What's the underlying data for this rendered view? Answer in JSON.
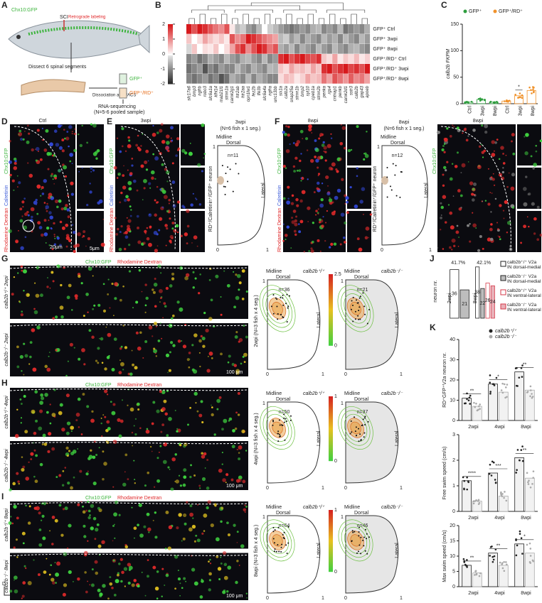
{
  "panels": {
    "a": "A",
    "b": "B",
    "c": "C",
    "d": "D",
    "e": "E",
    "f": "F",
    "g": "G",
    "h": "H",
    "i": "I",
    "j": "J",
    "k": "K"
  },
  "a": {
    "line": "Chx10:GFP",
    "sci": "SCI",
    "label": "Retrograde labeling",
    "dissect": "Dissect 6 spinal segments",
    "facs": "Dissociation and FACS",
    "gfp": "GFP⁺",
    "gfprd": "GFP⁺/RD⁺",
    "seq": "RNA-sequencing",
    "seq2": "(N=5-6 pooled sample)"
  },
  "b": {
    "genes": [
      "slc17a6",
      "bmp3",
      "ngfrb",
      "robo3",
      "slc6a1a",
      "klhl14",
      "mab21l1",
      "stmn1a",
      "camk2g1",
      "htr2ab",
      "htr2aa",
      "opn1lw1",
      "fez2b",
      "tfe3b",
      "slc6a4a",
      "ngfra",
      "unc13bb",
      "six1a",
      "calb2a",
      "snap25a",
      "stmn1b",
      "bmp2",
      "syt10",
      "cpeb1a",
      "stmn2b",
      "penka",
      "rgs4",
      "cntnap1",
      "penkb",
      "camk2d1",
      "sstr3",
      "calb2b",
      "gap43",
      "apoeb"
    ],
    "rows": [
      {
        "name": "GFP⁺ Ctrl",
        "color": "#2e9e3e",
        "values": [
          2,
          1.5,
          2,
          1.8,
          1.5,
          1.2,
          1,
          1.5,
          0.2,
          -0.5,
          -0.3,
          -0.8,
          -1,
          -0.5,
          0,
          -0.3,
          -0.5,
          -0.8,
          -1,
          -1.2,
          -1,
          -0.8,
          -1,
          -0.6,
          -0.5,
          -1,
          -0.8,
          -1,
          -0.5,
          -1.2,
          -1,
          -0.8,
          -1,
          -0.6
        ]
      },
      {
        "name": "GFP⁺ 3wpi",
        "color": "#2e9e3e",
        "values": [
          0.5,
          0,
          0.3,
          0.8,
          0.5,
          0.3,
          0.5,
          0.2,
          1.5,
          1,
          1.2,
          2,
          1.8,
          1.5,
          1.2,
          1,
          0.8,
          -0.5,
          -0.3,
          -0.8,
          -0.5,
          -1,
          -0.6,
          -0.8,
          -1,
          -0.5,
          -0.8,
          -0.6,
          -1,
          -0.5,
          -0.8,
          -1,
          -0.5,
          -0.8
        ]
      },
      {
        "name": "GFP⁺ 8wpi",
        "color": "#2e9e3e",
        "values": [
          -0.2,
          0.5,
          0,
          0.3,
          0.2,
          0.5,
          0,
          0.3,
          0.8,
          1.5,
          1.8,
          1,
          1.5,
          2,
          1.8,
          1.2,
          1.5,
          -0.6,
          -0.8,
          -0.5,
          -1,
          -0.6,
          -0.8,
          -1,
          -0.5,
          -0.8,
          -1,
          -0.5,
          -0.8,
          -1,
          -0.6,
          -0.5,
          -0.8,
          -1
        ]
      },
      {
        "name": "GFP⁺/RD⁺ Ctrl",
        "color": "#e8701e",
        "values": [
          -1,
          -0.8,
          -1.2,
          -1,
          -0.6,
          -0.8,
          -1,
          -0.5,
          -0.8,
          -1,
          -0.6,
          -0.5,
          -0.8,
          -1,
          -0.5,
          -1,
          -0.8,
          1.8,
          2,
          1.5,
          1.8,
          2,
          1.6,
          1.5,
          1.8,
          0.5,
          0.3,
          0.8,
          0.2,
          0.5,
          0.3,
          0.6,
          0.2,
          0.4
        ]
      },
      {
        "name": "GFP⁺/RD⁺ 3wpi",
        "color": "#e8701e",
        "values": [
          -1.2,
          -1,
          -0.8,
          -1.5,
          -1,
          -1.2,
          -0.8,
          -1,
          -1,
          -0.5,
          -0.8,
          -1,
          -0.6,
          -0.8,
          -1,
          -0.5,
          -0.6,
          0.5,
          0.3,
          0.8,
          0.5,
          0.6,
          0.4,
          0.8,
          0.5,
          1.8,
          2,
          1.5,
          1.8,
          2,
          1.6,
          1.8,
          1.5,
          2
        ]
      },
      {
        "name": "GFP⁺/RD⁺ 8wpi",
        "color": "#e8701e",
        "values": [
          -1,
          -1.2,
          -1,
          -0.8,
          -1.2,
          -1,
          -1.5,
          -1.2,
          -0.6,
          -0.8,
          -1,
          -0.5,
          -1,
          -0.6,
          -0.8,
          -1,
          -1,
          0.3,
          0.6,
          0.5,
          0.2,
          0.4,
          0.8,
          0.5,
          0.6,
          1.2,
          0.8,
          1.5,
          1.2,
          0.9,
          1.4,
          1,
          1.2,
          0.8
        ]
      }
    ],
    "lim": [
      -2,
      2
    ],
    "ticks": [
      2,
      1,
      0,
      -1,
      -2
    ],
    "high": "#d7191c",
    "low": "#222222"
  },
  "d": {
    "title": "Ctrl",
    "ch1": "Chx10:GFP",
    "ch2": "Calretinin",
    "ch3": "Rhodamine Dextran",
    "scale1": "20μm",
    "scale2": "5μm"
  },
  "e": {
    "title": "3wpi",
    "ch1": "Chx10:GFP",
    "ch2": "Calretinin",
    "ch3": "Rhodamine Dextran",
    "plot": {
      "title": "3wpi",
      "sub": "(N=6 fish x 1 seg.)",
      "midline": "Midline",
      "dorsal": "Dorsal",
      "lateral": "Lateral",
      "n": "n=11",
      "ylabel": "RD⁺/Calretinin⁺/GFP⁺ neuron",
      "ticks": [
        "0",
        "1",
        "1"
      ]
    }
  },
  "f": {
    "title": "8wpi",
    "title2": "8wpi",
    "ch1": "Chx10:GFP",
    "ch2": "Calretinin",
    "ch3": "Rhodamine Dextran",
    "ch4": "Chx10:GFP",
    "plot": {
      "title": "8wpi",
      "sub": "(N=6 fish x 1 seg.)",
      "midline": "Midline",
      "dorsal": "Dorsal",
      "lateral": "Lateral",
      "n": "n=12",
      "ylabel": "RD⁺/Calretinin⁺/GFP⁺ neuron",
      "ticks": [
        "0",
        "1",
        "1"
      ]
    }
  },
  "g": {
    "ch1": "Chx10:GFP",
    "ch2": "Rhodamine Dextran",
    "img1": "calb2b⁺/⁺ 2wpi",
    "img2": "calb2b⁻/⁻ 2wpi",
    "scale": "100 μm",
    "ylabel": "2wpi (N=3 fish x 4 seg.)",
    "colorbar": [
      "2.5",
      "0"
    ],
    "plots": [
      {
        "genotype": "calb2b⁺/⁺",
        "n": "n=36",
        "midline": "Midline",
        "dorsal": "Dorsal",
        "lateral": "Lateral",
        "ticks": [
          "0",
          "1",
          "1"
        ]
      },
      {
        "genotype": "calb2b⁻/⁻",
        "n": "n=21",
        "midline": "Midline",
        "dorsal": "Dorsal",
        "lateral": "Lateral",
        "ticks": [
          "0",
          "1",
          "1"
        ]
      }
    ]
  },
  "h": {
    "ch1": "Chx10:GFP",
    "ch2": "Rhodamine Dextran",
    "img1": "calb2b⁺/⁺ 4wpi",
    "img2": "calb2b⁻/⁻ 4wpi",
    "scale": "100 μm",
    "ylabel": "4wpi (N=3 fish x 4 seg.)",
    "colorbar": [
      "1",
      "0"
    ],
    "plots": [
      {
        "genotype": "calb2b⁺/⁺",
        "n": "n=50",
        "midline": "Midline",
        "dorsal": "Dorsal",
        "lateral": "Lateral",
        "ticks": [
          "0",
          "1",
          "1"
        ]
      },
      {
        "genotype": "calb2b⁻/⁻",
        "n": "n=37",
        "midline": "Midline",
        "dorsal": "Dorsal",
        "lateral": "Lateral",
        "ticks": [
          "0",
          "1",
          "1"
        ]
      }
    ]
  },
  "i": {
    "ch1": "Chx10:GFP",
    "ch2": "Rhodamine Dextran",
    "img1": "calb2b⁺/⁺ 8wpi",
    "img2": "calb2b⁻/⁻ 8wpi",
    "scale": "100 μm",
    "ylabel": "8wpi (N=3 fish x 4 seg.)",
    "colorbar": [
      "1",
      "0"
    ],
    "axis": [
      "D",
      "C"
    ],
    "plots": [
      {
        "genotype": "calb2b⁺/⁺",
        "n": "n=64",
        "midline": "Midline",
        "dorsal": "Dorsal",
        "lateral": "Lateral",
        "ticks": [
          "0",
          "1",
          "1"
        ]
      },
      {
        "genotype": "calb2b⁻/⁻",
        "n": "n=46",
        "midline": "Midline",
        "dorsal": "Dorsal",
        "lateral": "Lateral",
        "ticks": [
          "0",
          "1",
          "1"
        ]
      }
    ]
  },
  "chart_data": [
    {
      "type": "bar",
      "ylabel": "calb2b FKPM",
      "categories": [
        "Ctrl",
        "3wpi",
        "8wpi",
        "Ctrl",
        "3wpi",
        "8wpi"
      ],
      "ylim": [
        0,
        150
      ],
      "yticks": [
        0,
        50,
        100,
        150
      ],
      "significance": [
        null,
        null,
        null,
        null,
        "*",
        null
      ],
      "fill": "none",
      "series": [
        {
          "name": "GFP⁺",
          "color": "#2e9e3e",
          "values": [
            3,
            8,
            3,
            null,
            null,
            null
          ]
        },
        {
          "name": "GFP⁺/RD⁺",
          "color": "#f0922b",
          "values": [
            null,
            null,
            null,
            5,
            15,
            25
          ]
        }
      ]
    },
    {
      "type": "bar",
      "ylabel": "neuron nr.",
      "categories": [
        "2wpi",
        "8wpi"
      ],
      "ylim": [
        0,
        40
      ],
      "percent_labels": [
        "41.7%",
        "42.1%"
      ],
      "value_text": true,
      "series": [
        {
          "name": "calb2b⁺/⁺ V2a IN dorsal-medial",
          "color": "#ffffff",
          "stroke": "#222222",
          "values": [
            36,
            38
          ]
        },
        {
          "name": "calb2b⁻/⁻ V2a IN dorsal-medial",
          "color": "#bdbdbd",
          "stroke": "#222222",
          "values": [
            21,
            22
          ]
        },
        {
          "name": "calb2b⁺/⁺ V2a IN ventral-lateral",
          "color": "#ffffff",
          "stroke": "#d63a4a",
          "values": [
            null,
            26
          ]
        },
        {
          "name": "calb2b⁻/⁻ V2a IN ventral-lateral",
          "color": "#e8b0b8",
          "stroke": "#d63a4a",
          "values": [
            null,
            24
          ]
        }
      ]
    },
    {
      "type": "bar",
      "ylabel": "RD⁺GFP⁺V2a neuron nr.",
      "categories": [
        "2wpi",
        "4wpi",
        "8wpi"
      ],
      "ylim": [
        0,
        40
      ],
      "yticks": [
        0,
        10,
        20,
        30,
        40
      ],
      "significance": [
        "**",
        "*",
        "**"
      ],
      "legend": true,
      "fill": "#f2f2f2",
      "series": [
        {
          "name": "calb2b⁺/⁺",
          "color": "#222222",
          "values": [
            11,
            18,
            24
          ]
        },
        {
          "name": "calb2b⁻/⁻",
          "color": "#aaaaaa",
          "values": [
            7,
            14,
            15
          ]
        }
      ]
    },
    {
      "type": "bar",
      "ylabel": "Free swim speed (cm/s)",
      "categories": [
        "2wpi",
        "4wpi",
        "8wpi"
      ],
      "ylim": [
        0,
        3
      ],
      "yticks": [
        0,
        1,
        2,
        3
      ],
      "significance": [
        "****",
        "***",
        "**"
      ],
      "fill": "#f2f2f2",
      "series": [
        {
          "name": "calb2b⁺/⁺",
          "color": "#222222",
          "values": [
            1.2,
            1.5,
            2.1
          ]
        },
        {
          "name": "calb2b⁻/⁻",
          "color": "#aaaaaa",
          "values": [
            0.4,
            0.6,
            1.3
          ]
        }
      ]
    },
    {
      "type": "bar",
      "ylabel": "Max swim speed (cm/s)",
      "categories": [
        "2wpi",
        "4wpi",
        "8wpi"
      ],
      "ylim": [
        0,
        20
      ],
      "yticks": [
        0,
        5,
        10,
        15,
        20
      ],
      "significance": [
        "**",
        "**",
        "*"
      ],
      "fill": "#f2f2f2",
      "series": [
        {
          "name": "calb2b⁺/⁺",
          "color": "#222222",
          "values": [
            7,
            11,
            14
          ]
        },
        {
          "name": "calb2b⁻/⁻",
          "color": "#aaaaaa",
          "values": [
            4.5,
            7,
            11
          ]
        }
      ]
    }
  ]
}
